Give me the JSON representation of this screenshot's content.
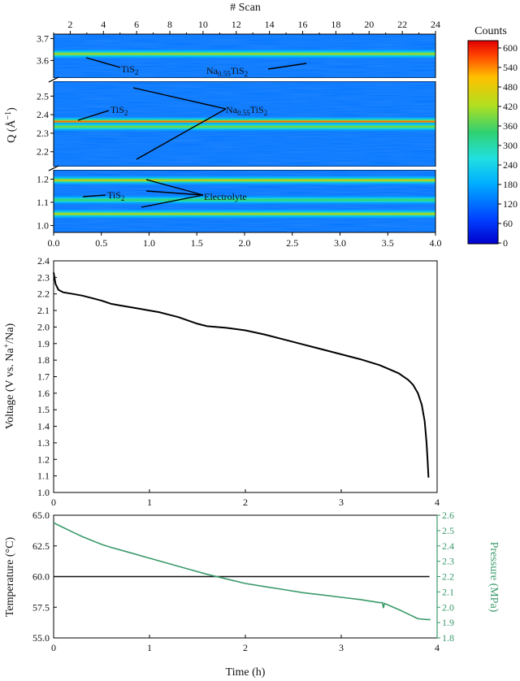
{
  "colors": {
    "temperature": "#111111",
    "pressure": "#3a9a6a",
    "voltage": "#000000",
    "axis": "#000000"
  },
  "chart_data": [
    {
      "type": "heatmap",
      "xlabel_top": "# Scan",
      "xticks_top": [
        "2",
        "4",
        "6",
        "8",
        "10",
        "12",
        "14",
        "16",
        "18",
        "20",
        "22",
        "24"
      ],
      "xlim_top": [
        1,
        24
      ],
      "xticks_bottom": [
        "0.0",
        "0.5",
        "1.0",
        "1.5",
        "2.0",
        "2.5",
        "3.0",
        "3.5",
        "4.0"
      ],
      "xlim": [
        0,
        4
      ],
      "ylabel": "Q (Å",
      "ylabel_sup": "−1",
      "ylabel_tail": ")",
      "segments": [
        {
          "range": [
            3.52,
            3.72
          ],
          "ticks": [
            "3.5",
            "3.6",
            "3.7"
          ],
          "ticks_v": [
            3.5,
            3.6,
            3.7
          ],
          "bands": [
            {
              "q": 3.63,
              "strength": 0.5
            }
          ]
        },
        {
          "range": [
            2.12,
            2.58
          ],
          "ticks": [
            "2.2",
            "2.3",
            "2.4",
            "2.5"
          ],
          "ticks_v": [
            2.2,
            2.3,
            2.4,
            2.5
          ],
          "bands": [
            {
              "q": 2.363,
              "strength": 0.9
            },
            {
              "q": 2.335,
              "strength": 0.35
            }
          ]
        },
        {
          "range": [
            0.97,
            1.24
          ],
          "ticks": [
            "1.0",
            "1.1",
            "1.2"
          ],
          "ticks_v": [
            1.0,
            1.1,
            1.2
          ],
          "bands": [
            {
              "q": 1.195,
              "strength": 0.6
            },
            {
              "q": 1.05,
              "strength": 0.55
            },
            {
              "q": 1.11,
              "strength": 0.2
            }
          ]
        }
      ],
      "colorbar": {
        "title": "Counts",
        "ticks": [
          "0",
          "60",
          "120",
          "180",
          "240",
          "300",
          "360",
          "420",
          "480",
          "540",
          "600"
        ],
        "range": [
          0,
          620
        ]
      },
      "annotations": [
        {
          "text": "TiS",
          "sub": "2"
        },
        {
          "text": "Na",
          "sub": "0.55",
          "tail": "TiS",
          "sub2": "2"
        },
        {
          "text": "TiS",
          "sub": "2"
        },
        {
          "text": "Na",
          "sub": "0.55",
          "tail": "TiS",
          "sub2": "2"
        },
        {
          "text": "TiS",
          "sub": "2"
        },
        {
          "text": "Electrolyte"
        }
      ]
    },
    {
      "type": "line",
      "ylabel": "Voltage (V vs. Na",
      "ylabel_sup": "+",
      "ylabel_tail": "/Na)",
      "xlim": [
        0,
        4
      ],
      "ylim": [
        1.0,
        2.4
      ],
      "xticks": [
        "0",
        "1",
        "2",
        "3",
        "4"
      ],
      "yticks": [
        "1.0",
        "1.1",
        "1.2",
        "1.3",
        "1.4",
        "1.5",
        "1.6",
        "1.7",
        "1.8",
        "1.9",
        "2.0",
        "2.1",
        "2.2",
        "2.3",
        "2.4"
      ],
      "x": [
        0.0,
        0.02,
        0.05,
        0.1,
        0.2,
        0.3,
        0.4,
        0.5,
        0.6,
        0.7,
        0.8,
        0.9,
        1.0,
        1.1,
        1.2,
        1.3,
        1.4,
        1.5,
        1.6,
        1.7,
        1.8,
        2.0,
        2.2,
        2.4,
        2.6,
        2.8,
        3.0,
        3.2,
        3.4,
        3.5,
        3.6,
        3.7,
        3.75,
        3.8,
        3.84,
        3.87,
        3.89,
        3.9,
        3.91
      ],
      "y": [
        2.33,
        2.26,
        2.225,
        2.21,
        2.2,
        2.19,
        2.175,
        2.16,
        2.14,
        2.13,
        2.12,
        2.11,
        2.1,
        2.09,
        2.075,
        2.06,
        2.04,
        2.02,
        2.005,
        2.0,
        1.995,
        1.98,
        1.955,
        1.925,
        1.895,
        1.865,
        1.835,
        1.805,
        1.77,
        1.745,
        1.72,
        1.68,
        1.65,
        1.6,
        1.53,
        1.43,
        1.3,
        1.2,
        1.09
      ]
    },
    {
      "type": "line",
      "xlabel": "Time (h)",
      "xlim": [
        0,
        4
      ],
      "xticks": [
        "0",
        "1",
        "2",
        "3",
        "4"
      ],
      "ylabel_left": "Temperature (°C)",
      "ylim_left": [
        55.0,
        65.0
      ],
      "yticks_left": [
        "55.0",
        "57.5",
        "60.0",
        "62.5",
        "65.0"
      ],
      "ylabel_right": "Pressure (MPa)",
      "ylim_right": [
        1.8,
        2.6
      ],
      "yticks_right": [
        "1.8",
        "1.9",
        "2.0",
        "2.1",
        "2.2",
        "2.3",
        "2.4",
        "2.5",
        "2.6"
      ],
      "series": [
        {
          "name": "Temperature",
          "axis": "left",
          "x": [
            0,
            3.92
          ],
          "y": [
            60.0,
            60.0
          ]
        },
        {
          "name": "Pressure",
          "axis": "right",
          "x": [
            0.0,
            0.1,
            0.2,
            0.3,
            0.4,
            0.5,
            0.6,
            0.8,
            1.0,
            1.2,
            1.4,
            1.6,
            1.8,
            2.0,
            2.2,
            2.4,
            2.6,
            2.8,
            3.0,
            3.2,
            3.4,
            3.43,
            3.44,
            3.45,
            3.6,
            3.7,
            3.8,
            3.9,
            3.93
          ],
          "y": [
            2.55,
            2.52,
            2.49,
            2.46,
            2.435,
            2.41,
            2.39,
            2.355,
            2.32,
            2.285,
            2.25,
            2.215,
            2.185,
            2.155,
            2.135,
            2.115,
            2.095,
            2.08,
            2.065,
            2.05,
            2.03,
            2.03,
            1.995,
            2.025,
            1.985,
            1.955,
            1.925,
            1.92,
            1.92
          ]
        }
      ]
    }
  ]
}
